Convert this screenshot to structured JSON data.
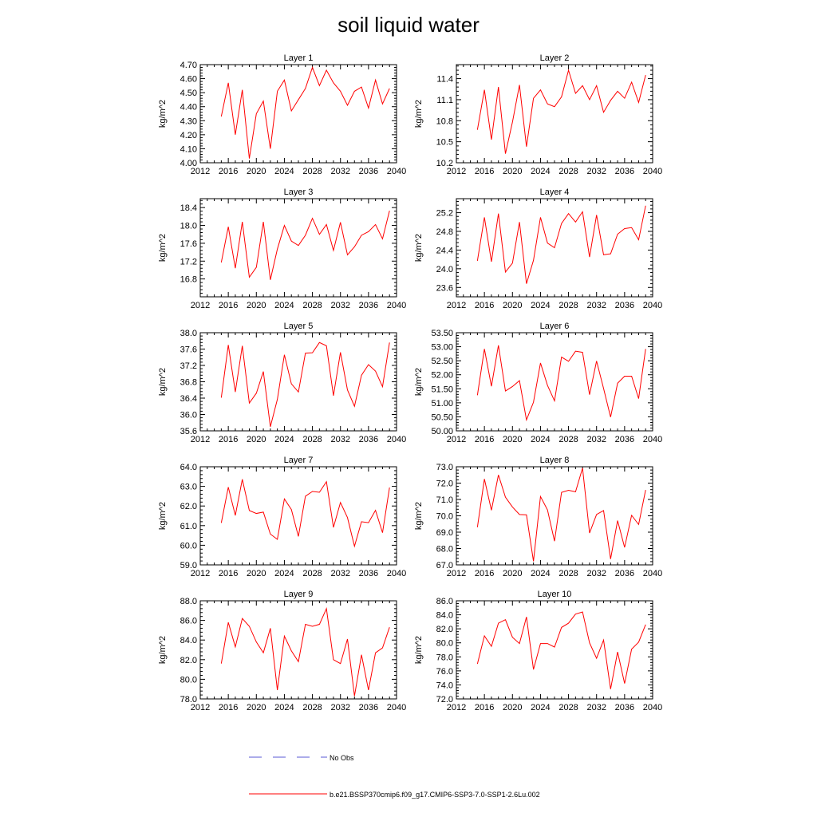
{
  "page": {
    "title": "soil liquid water"
  },
  "chart_data": [
    {
      "type": "line",
      "title": "Layer 1",
      "ylabel": "kg/m^2",
      "xlim": [
        2012,
        2040
      ],
      "xticks": [
        "2012",
        "2016",
        "2020",
        "2024",
        "2028",
        "2032",
        "2036",
        "2040"
      ],
      "ylim": [
        4.0,
        4.7
      ],
      "yticks": [
        "4.00",
        "4.10",
        "4.20",
        "4.30",
        "4.40",
        "4.50",
        "4.60",
        "4.70"
      ],
      "x": [
        2015,
        2016,
        2017,
        2018,
        2019,
        2020,
        2021,
        2022,
        2023,
        2024,
        2025,
        2026,
        2027,
        2028,
        2029,
        2030,
        2031,
        2032,
        2033,
        2034,
        2035,
        2036,
        2037,
        2038,
        2039
      ],
      "series": [
        {
          "color": "#ff0000",
          "values": [
            4.33,
            4.57,
            4.2,
            4.52,
            4.03,
            4.35,
            4.44,
            4.1,
            4.51,
            4.59,
            4.37,
            4.45,
            4.53,
            4.68,
            4.55,
            4.66,
            4.57,
            4.51,
            4.41,
            4.51,
            4.54,
            4.39,
            4.59,
            4.42,
            4.53
          ]
        }
      ]
    },
    {
      "type": "line",
      "title": "Layer 2",
      "ylabel": "kg/m^2",
      "xlim": [
        2012,
        2040
      ],
      "xticks": [
        "2012",
        "2016",
        "2020",
        "2024",
        "2028",
        "2032",
        "2036",
        "2040"
      ],
      "ylim": [
        10.2,
        11.6
      ],
      "yticks": [
        "10.2",
        "10.5",
        "10.8",
        "11.1",
        "11.4"
      ],
      "x": [
        2015,
        2016,
        2017,
        2018,
        2019,
        2020,
        2021,
        2022,
        2023,
        2024,
        2025,
        2026,
        2027,
        2028,
        2029,
        2030,
        2031,
        2032,
        2033,
        2034,
        2035,
        2036,
        2037,
        2038,
        2039
      ],
      "series": [
        {
          "color": "#ff0000",
          "values": [
            10.67,
            11.24,
            10.53,
            11.28,
            10.33,
            10.78,
            11.31,
            10.43,
            11.12,
            11.24,
            11.04,
            11.0,
            11.14,
            11.52,
            11.19,
            11.3,
            11.1,
            11.3,
            10.92,
            11.09,
            11.22,
            11.12,
            11.35,
            11.06,
            11.45
          ]
        }
      ]
    },
    {
      "type": "line",
      "title": "Layer 3",
      "ylabel": "kg/m^2",
      "xlim": [
        2012,
        2040
      ],
      "xticks": [
        "2012",
        "2016",
        "2020",
        "2024",
        "2028",
        "2032",
        "2036",
        "2040"
      ],
      "ylim": [
        16.4,
        18.6
      ],
      "yticks": [
        "16.8",
        "17.2",
        "17.6",
        "18.0",
        "18.4"
      ],
      "x": [
        2015,
        2016,
        2017,
        2018,
        2019,
        2020,
        2021,
        2022,
        2023,
        2024,
        2025,
        2026,
        2027,
        2028,
        2029,
        2030,
        2031,
        2032,
        2033,
        2034,
        2035,
        2036,
        2037,
        2038,
        2039
      ],
      "series": [
        {
          "color": "#ff0000",
          "values": [
            17.17,
            17.97,
            17.04,
            18.08,
            16.84,
            17.06,
            18.08,
            16.78,
            17.47,
            18.0,
            17.65,
            17.55,
            17.78,
            18.16,
            17.8,
            18.02,
            17.44,
            18.07,
            17.34,
            17.52,
            17.78,
            17.86,
            18.02,
            17.7,
            18.33
          ]
        }
      ]
    },
    {
      "type": "line",
      "title": "Layer 4",
      "ylabel": "kg/m^2",
      "xlim": [
        2012,
        2040
      ],
      "xticks": [
        "2012",
        "2016",
        "2020",
        "2024",
        "2028",
        "2032",
        "2036",
        "2040"
      ],
      "ylim": [
        23.4,
        25.5
      ],
      "yticks": [
        "23.6",
        "24.0",
        "24.4",
        "24.8",
        "25.2"
      ],
      "x": [
        2015,
        2016,
        2017,
        2018,
        2019,
        2020,
        2021,
        2022,
        2023,
        2024,
        2025,
        2026,
        2027,
        2028,
        2029,
        2030,
        2031,
        2032,
        2033,
        2034,
        2035,
        2036,
        2037,
        2038,
        2039
      ],
      "series": [
        {
          "color": "#ff0000",
          "values": [
            24.17,
            25.1,
            24.15,
            25.18,
            23.93,
            24.12,
            25.0,
            23.68,
            24.18,
            25.1,
            24.55,
            24.45,
            24.97,
            25.18,
            25.0,
            25.22,
            24.25,
            25.15,
            24.3,
            24.32,
            24.74,
            24.86,
            24.88,
            24.62,
            25.35
          ]
        }
      ]
    },
    {
      "type": "line",
      "title": "Layer 5",
      "ylabel": "kg/m^2",
      "xlim": [
        2012,
        2040
      ],
      "xticks": [
        "2012",
        "2016",
        "2020",
        "2024",
        "2028",
        "2032",
        "2036",
        "2040"
      ],
      "ylim": [
        35.6,
        38.0
      ],
      "yticks": [
        "35.6",
        "36.0",
        "36.4",
        "36.8",
        "37.2",
        "37.6",
        "38.0"
      ],
      "x": [
        2015,
        2016,
        2017,
        2018,
        2019,
        2020,
        2021,
        2022,
        2023,
        2024,
        2025,
        2026,
        2027,
        2028,
        2029,
        2030,
        2031,
        2032,
        2033,
        2034,
        2035,
        2036,
        2037,
        2038,
        2039
      ],
      "series": [
        {
          "color": "#ff0000",
          "values": [
            36.41,
            37.7,
            36.55,
            37.68,
            36.28,
            36.52,
            37.05,
            35.7,
            36.37,
            37.46,
            36.75,
            36.55,
            37.5,
            37.51,
            37.76,
            37.68,
            36.46,
            37.52,
            36.6,
            36.2,
            36.96,
            37.22,
            37.06,
            36.68,
            37.76
          ]
        }
      ]
    },
    {
      "type": "line",
      "title": "Layer 6",
      "ylabel": "kg/m^2",
      "xlim": [
        2012,
        2040
      ],
      "xticks": [
        "2012",
        "2016",
        "2020",
        "2024",
        "2028",
        "2032",
        "2036",
        "2040"
      ],
      "ylim": [
        50.0,
        53.5
      ],
      "yticks": [
        "50.00",
        "50.50",
        "51.00",
        "51.50",
        "52.00",
        "52.50",
        "53.00",
        "53.50"
      ],
      "x": [
        2015,
        2016,
        2017,
        2018,
        2019,
        2020,
        2021,
        2022,
        2023,
        2024,
        2025,
        2026,
        2027,
        2028,
        2029,
        2030,
        2031,
        2032,
        2033,
        2034,
        2035,
        2036,
        2037,
        2038,
        2039
      ],
      "series": [
        {
          "color": "#ff0000",
          "values": [
            51.27,
            52.92,
            51.59,
            53.05,
            51.42,
            51.58,
            51.79,
            50.39,
            51.02,
            52.42,
            51.62,
            51.07,
            52.63,
            52.48,
            52.84,
            52.8,
            51.29,
            52.49,
            51.51,
            50.49,
            51.7,
            51.95,
            51.95,
            51.15,
            52.92
          ]
        }
      ]
    },
    {
      "type": "line",
      "title": "Layer 7",
      "ylabel": "kg/m^2",
      "xlim": [
        2012,
        2040
      ],
      "xticks": [
        "2012",
        "2016",
        "2020",
        "2024",
        "2028",
        "2032",
        "2036",
        "2040"
      ],
      "ylim": [
        59.0,
        64.0
      ],
      "yticks": [
        "59.0",
        "60.0",
        "61.0",
        "62.0",
        "63.0",
        "64.0"
      ],
      "x": [
        2015,
        2016,
        2017,
        2018,
        2019,
        2020,
        2021,
        2022,
        2023,
        2024,
        2025,
        2026,
        2027,
        2028,
        2029,
        2030,
        2031,
        2032,
        2033,
        2034,
        2035,
        2036,
        2037,
        2038,
        2039
      ],
      "series": [
        {
          "color": "#ff0000",
          "values": [
            61.14,
            62.96,
            61.52,
            63.36,
            61.77,
            61.62,
            61.69,
            60.57,
            60.3,
            62.36,
            61.82,
            60.45,
            62.5,
            62.74,
            62.7,
            63.24,
            60.91,
            62.18,
            61.41,
            59.95,
            61.2,
            61.15,
            61.78,
            60.64,
            62.94
          ]
        }
      ]
    },
    {
      "type": "line",
      "title": "Layer 8",
      "ylabel": "kg/m^2",
      "xlim": [
        2012,
        2040
      ],
      "xticks": [
        "2012",
        "2016",
        "2020",
        "2024",
        "2028",
        "2032",
        "2036",
        "2040"
      ],
      "ylim": [
        67.0,
        73.0
      ],
      "yticks": [
        "67.0",
        "68.0",
        "69.0",
        "70.0",
        "71.0",
        "72.0",
        "73.0"
      ],
      "x": [
        2015,
        2016,
        2017,
        2018,
        2019,
        2020,
        2021,
        2022,
        2023,
        2024,
        2025,
        2026,
        2027,
        2028,
        2029,
        2030,
        2031,
        2032,
        2033,
        2034,
        2035,
        2036,
        2037,
        2038,
        2039
      ],
      "series": [
        {
          "color": "#ff0000",
          "values": [
            69.3,
            72.25,
            70.34,
            72.5,
            71.14,
            70.54,
            70.08,
            70.06,
            67.22,
            71.18,
            70.36,
            68.45,
            71.43,
            71.56,
            71.47,
            72.92,
            68.95,
            70.08,
            70.32,
            67.36,
            69.71,
            68.07,
            70.03,
            69.47,
            71.58
          ]
        }
      ]
    },
    {
      "type": "line",
      "title": "Layer 9",
      "ylabel": "kg/m^2",
      "xlim": [
        2012,
        2040
      ],
      "xticks": [
        "2012",
        "2016",
        "2020",
        "2024",
        "2028",
        "2032",
        "2036",
        "2040"
      ],
      "ylim": [
        78.0,
        88.0
      ],
      "yticks": [
        "78.0",
        "80.0",
        "82.0",
        "84.0",
        "86.0",
        "88.0"
      ],
      "x": [
        2015,
        2016,
        2017,
        2018,
        2019,
        2020,
        2021,
        2022,
        2023,
        2024,
        2025,
        2026,
        2027,
        2028,
        2029,
        2030,
        2031,
        2032,
        2033,
        2034,
        2035,
        2036,
        2037,
        2038,
        2039
      ],
      "series": [
        {
          "color": "#ff0000",
          "values": [
            81.6,
            85.8,
            83.3,
            86.2,
            85.4,
            83.8,
            82.7,
            85.2,
            78.9,
            84.4,
            82.9,
            81.8,
            85.6,
            85.4,
            85.6,
            87.2,
            82.0,
            81.6,
            84.1,
            78.3,
            82.5,
            78.9,
            82.7,
            83.2,
            85.3
          ]
        }
      ]
    },
    {
      "type": "line",
      "title": "Layer 10",
      "ylabel": "kg/m^2",
      "xlim": [
        2012,
        2040
      ],
      "xticks": [
        "2012",
        "2016",
        "2020",
        "2024",
        "2028",
        "2032",
        "2036",
        "2040"
      ],
      "ylim": [
        72.0,
        86.0
      ],
      "yticks": [
        "72.0",
        "74.0",
        "76.0",
        "78.0",
        "80.0",
        "82.0",
        "84.0",
        "86.0"
      ],
      "x": [
        2015,
        2016,
        2017,
        2018,
        2019,
        2020,
        2021,
        2022,
        2023,
        2024,
        2025,
        2026,
        2027,
        2028,
        2029,
        2030,
        2031,
        2032,
        2033,
        2034,
        2035,
        2036,
        2037,
        2038,
        2039
      ],
      "series": [
        {
          "color": "#ff0000",
          "values": [
            77.0,
            81.0,
            79.5,
            82.8,
            83.3,
            80.8,
            79.9,
            83.7,
            76.2,
            79.9,
            79.9,
            79.4,
            82.2,
            82.8,
            84.1,
            84.4,
            80.0,
            77.8,
            80.4,
            73.4,
            78.7,
            74.2,
            79.1,
            80.1,
            82.6
          ]
        }
      ]
    }
  ],
  "legend": {
    "entries": [
      {
        "label": "No Obs",
        "color": "#5a5ad6",
        "style": "dashed"
      },
      {
        "label": "b.e21.BSSP370cmip6.f09_g17.CMIP6-SSP3-7.0-SSP1-2.6Lu.002",
        "color": "#ff0000",
        "style": "solid"
      }
    ]
  }
}
